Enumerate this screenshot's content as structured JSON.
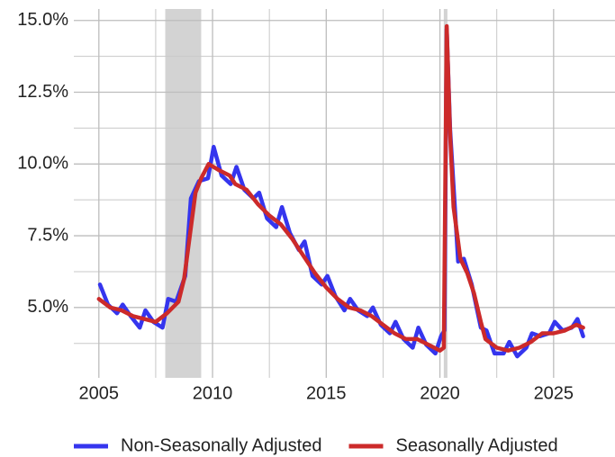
{
  "chart_data": {
    "type": "line",
    "xlim": [
      2003.9,
      2027.7
    ],
    "ylim": [
      2.55,
      15.4
    ],
    "xticks": [
      2005,
      2010,
      2015,
      2020,
      2025
    ],
    "yticks": [
      {
        "value": 5,
        "label": "5.0%"
      },
      {
        "value": 7.5,
        "label": "7.5%"
      },
      {
        "value": 10,
        "label": "10.0%"
      },
      {
        "value": 12.5,
        "label": "12.5%"
      },
      {
        "value": 15,
        "label": "15.0%"
      }
    ],
    "minor_xticks": [
      2007.5,
      2012.5,
      2017.5,
      2022.5
    ],
    "minor_yticks": [
      3.75,
      6.25,
      8.75,
      11.25,
      13.75
    ],
    "grid": true,
    "shaded_periods": [
      [
        2007.92,
        2009.5
      ],
      [
        2020.17,
        2020.33
      ]
    ],
    "legend": "bottom",
    "series": [
      {
        "name": "Non-Seasonally Adjusted",
        "color": "#3535ee",
        "x": [
          2005.05,
          2005.4,
          2005.8,
          2006.05,
          2006.4,
          2006.8,
          2007.05,
          2007.4,
          2007.8,
          2008.05,
          2008.4,
          2008.8,
          2009.05,
          2009.4,
          2009.8,
          2010.05,
          2010.4,
          2010.8,
          2011.05,
          2011.4,
          2011.8,
          2012.05,
          2012.4,
          2012.8,
          2013.05,
          2013.4,
          2013.8,
          2014.05,
          2014.4,
          2014.8,
          2015.05,
          2015.4,
          2015.8,
          2016.05,
          2016.4,
          2016.8,
          2017.05,
          2017.4,
          2017.8,
          2018.05,
          2018.4,
          2018.8,
          2019.05,
          2019.4,
          2019.8,
          2020.05,
          2020.2,
          2020.3,
          2020.45,
          2020.8,
          2021.05,
          2021.4,
          2021.8,
          2022.05,
          2022.4,
          2022.8,
          2023.05,
          2023.4,
          2023.8,
          2024.05,
          2024.4,
          2024.8,
          2025.05,
          2025.4,
          2025.8,
          2026.05,
          2026.3
        ],
        "values": [
          5.8,
          5.1,
          4.8,
          5.1,
          4.7,
          4.3,
          4.9,
          4.5,
          4.3,
          5.3,
          5.2,
          6.1,
          8.8,
          9.4,
          9.5,
          10.6,
          9.6,
          9.3,
          9.9,
          9.1,
          8.8,
          9.0,
          8.1,
          7.8,
          8.5,
          7.6,
          7.0,
          7.3,
          6.1,
          5.8,
          6.1,
          5.4,
          4.9,
          5.3,
          4.9,
          4.7,
          5.0,
          4.4,
          4.1,
          4.5,
          3.9,
          3.6,
          4.3,
          3.7,
          3.4,
          4.0,
          4.2,
          14.7,
          11.2,
          6.6,
          6.7,
          5.8,
          4.3,
          4.2,
          3.4,
          3.4,
          3.8,
          3.3,
          3.6,
          4.1,
          4.0,
          4.1,
          4.5,
          4.2,
          4.3,
          4.6,
          4.0
        ]
      },
      {
        "name": "Seasonally Adjusted",
        "color": "#cc2a2a",
        "x": [
          2005.0,
          2005.5,
          2006.0,
          2006.5,
          2007.0,
          2007.5,
          2008.0,
          2008.5,
          2008.75,
          2009.0,
          2009.25,
          2009.5,
          2009.83,
          2010.25,
          2010.75,
          2011.0,
          2011.5,
          2012.0,
          2012.5,
          2013.0,
          2013.5,
          2014.0,
          2014.5,
          2015.0,
          2015.5,
          2016.0,
          2016.5,
          2017.0,
          2017.5,
          2018.0,
          2018.5,
          2019.0,
          2019.5,
          2020.0,
          2020.17,
          2020.3,
          2020.45,
          2020.6,
          2020.9,
          2021.2,
          2021.5,
          2021.8,
          2022.0,
          2022.5,
          2023.0,
          2023.5,
          2024.0,
          2024.5,
          2025.0,
          2025.5,
          2026.0,
          2026.3
        ],
        "values": [
          5.3,
          5.0,
          4.9,
          4.7,
          4.6,
          4.5,
          4.8,
          5.2,
          6.0,
          7.5,
          9.0,
          9.5,
          10.0,
          9.8,
          9.6,
          9.3,
          9.1,
          8.6,
          8.2,
          7.9,
          7.4,
          6.8,
          6.2,
          5.7,
          5.3,
          5.0,
          4.9,
          4.7,
          4.4,
          4.1,
          3.9,
          3.9,
          3.7,
          3.5,
          3.6,
          14.8,
          11.0,
          8.5,
          6.7,
          6.2,
          5.5,
          4.5,
          3.9,
          3.6,
          3.5,
          3.6,
          3.8,
          4.1,
          4.1,
          4.2,
          4.4,
          4.3
        ]
      }
    ]
  }
}
